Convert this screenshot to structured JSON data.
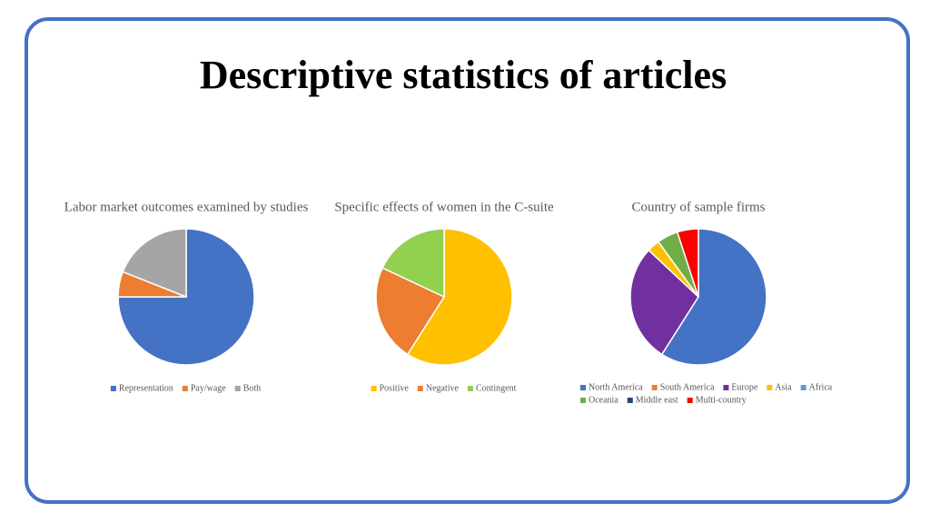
{
  "slide_title": "Descriptive statistics of articles",
  "chart_data": [
    {
      "type": "pie",
      "title": "Labor market outcomes examined by studies",
      "categories": [
        "Representation",
        "Pay/wage",
        "Both"
      ],
      "values": [
        75,
        6,
        19
      ],
      "colors": [
        "#4472c4",
        "#ed7d31",
        "#a5a5a5"
      ]
    },
    {
      "type": "pie",
      "title": "Specific effects of women in the C-suite",
      "categories": [
        "Positive",
        "Negative",
        "Contingent"
      ],
      "values": [
        59,
        23,
        18
      ],
      "colors": [
        "#ffc000",
        "#ed7d31",
        "#92d050"
      ]
    },
    {
      "type": "pie",
      "title": "Country of sample firms",
      "categories": [
        "North America",
        "South America",
        "Europe",
        "Asia",
        "Africa",
        "Oceania",
        "Middle east",
        "Multi-country"
      ],
      "values": [
        59,
        0,
        28,
        3,
        0,
        5,
        0,
        5
      ],
      "colors": [
        "#4472c4",
        "#ed7d31",
        "#7030a0",
        "#ffc000",
        "#5b9bd5",
        "#70ad47",
        "#264478",
        "#ff0000"
      ]
    }
  ]
}
